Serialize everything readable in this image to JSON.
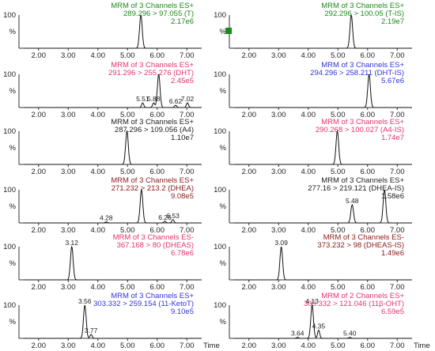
{
  "time_label": "Time",
  "chart_data": [
    {
      "type": "line",
      "col": 0,
      "row": 0,
      "color": "#1a8a1a",
      "header": [
        "MRM of 3 Channels ES+",
        "289.296 > 97.055 (T)",
        "2.17e6"
      ],
      "x_ticks": [
        "2.00",
        "3.00",
        "4.00",
        "5.00",
        "6.00",
        "7.00"
      ],
      "xlim": [
        1.5,
        7.5
      ],
      "y_ticks": [
        "100",
        "%"
      ],
      "ylim": [
        0,
        100
      ],
      "peaks": [
        {
          "x": 5.45,
          "y": 100
        }
      ],
      "peak_labels": []
    },
    {
      "type": "line",
      "col": 1,
      "row": 0,
      "color": "#1a8a1a",
      "header": [
        "MRM of 3 Channels ES+",
        "292.296 > 100.05 (T-IS)",
        "2.19e7"
      ],
      "x_ticks": [
        "2.00",
        "3.00",
        "4.00",
        "5.00",
        "6.00",
        "7.00"
      ],
      "xlim": [
        1.5,
        7.5
      ],
      "y_ticks": [
        "100",
        "%"
      ],
      "ylim": [
        0,
        100
      ],
      "peaks": [
        {
          "x": 5.45,
          "y": 100
        }
      ],
      "peak_labels": []
    },
    {
      "type": "line",
      "col": 0,
      "row": 1,
      "color": "#e8336c",
      "header": [
        "MRM of 3 Channels ES+",
        "291.296 > 255.276 (DHT)",
        "2.45e5"
      ],
      "x_ticks": [
        "2.00",
        "3.00",
        "4.00",
        "5.00",
        "6.00",
        "7.00"
      ],
      "xlim": [
        1.5,
        7.5
      ],
      "y_ticks": [
        "100",
        "%"
      ],
      "ylim": [
        0,
        100
      ],
      "peaks": [
        {
          "x": 5.51,
          "y": 14
        },
        {
          "x": 5.88,
          "y": 14
        },
        {
          "x": 6.05,
          "y": 100
        },
        {
          "x": 6.62,
          "y": 7
        },
        {
          "x": 7.02,
          "y": 14
        }
      ],
      "peak_labels": [
        {
          "x": 5.51,
          "text": "5.51"
        },
        {
          "x": 5.88,
          "text": "5.88"
        },
        {
          "x": 6.62,
          "text": "6.62"
        },
        {
          "x": 7.02,
          "text": "7.02"
        }
      ]
    },
    {
      "type": "line",
      "col": 1,
      "row": 1,
      "color": "#3333dd",
      "header": [
        "MRM of 3 Channels ES+",
        "294.296 > 258.211 (DHT-IS)",
        "5.67e6"
      ],
      "x_ticks": [
        "2.00",
        "3.00",
        "4.00",
        "5.00",
        "6.00",
        "7.00"
      ],
      "xlim": [
        1.5,
        7.5
      ],
      "y_ticks": [
        "100",
        "%"
      ],
      "ylim": [
        0,
        100
      ],
      "peaks": [
        {
          "x": 6.05,
          "y": 100
        }
      ],
      "peak_labels": []
    },
    {
      "type": "line",
      "col": 0,
      "row": 2,
      "color": "#222222",
      "header": [
        "MRM of 3 Channels ES+",
        "287.296 > 109.056 (A4)",
        "1.10e7"
      ],
      "x_ticks": [
        "2.00",
        "3.00",
        "4.00",
        "5.00",
        "6.00",
        "7.00"
      ],
      "xlim": [
        1.5,
        7.5
      ],
      "y_ticks": [
        "100",
        "%"
      ],
      "ylim": [
        0,
        100
      ],
      "peaks": [
        {
          "x": 4.98,
          "y": 100
        }
      ],
      "peak_labels": []
    },
    {
      "type": "line",
      "col": 1,
      "row": 2,
      "color": "#e8336c",
      "header": [
        "MRM of 3 Channels ES+",
        "290.268 > 100.027 (A4-IS)",
        "1.74e7"
      ],
      "x_ticks": [
        "2.00",
        "3.00",
        "4.00",
        "5.00",
        "6.00",
        "7.00"
      ],
      "xlim": [
        1.5,
        7.5
      ],
      "y_ticks": [
        "100",
        "%"
      ],
      "ylim": [
        0,
        100
      ],
      "peaks": [
        {
          "x": 4.98,
          "y": 100
        }
      ],
      "peak_labels": []
    },
    {
      "type": "line",
      "col": 0,
      "row": 3,
      "color": "#8b1a1a",
      "header": [
        "MRM of 3 Channels ES+",
        "271.232 > 213.2 (DHEA)",
        "9.08e5"
      ],
      "x_ticks": [
        "2.00",
        "3.00",
        "4.00",
        "5.00",
        "6.00",
        "7.00"
      ],
      "xlim": [
        1.5,
        7.5
      ],
      "y_ticks": [
        "100",
        "%"
      ],
      "ylim": [
        0,
        100
      ],
      "peaks": [
        {
          "x": 4.28,
          "y": 3
        },
        {
          "x": 5.47,
          "y": 100
        },
        {
          "x": 6.26,
          "y": 5
        },
        {
          "x": 6.53,
          "y": 10
        }
      ],
      "peak_labels": [
        {
          "x": 4.28,
          "text": "4.28"
        },
        {
          "x": 6.26,
          "text": "6.26"
        },
        {
          "x": 6.53,
          "text": "6.53"
        }
      ]
    },
    {
      "type": "line",
      "col": 1,
      "row": 3,
      "color": "#222222",
      "header": [
        "MRM of 3 Channels ES+",
        "277.16 > 219.121 (DHEA-IS)",
        "1.58e6"
      ],
      "x_ticks": [
        "2.00",
        "3.00",
        "4.00",
        "5.00",
        "6.00",
        "7.00"
      ],
      "xlim": [
        1.5,
        7.5
      ],
      "y_ticks": [
        "100",
        "%"
      ],
      "ylim": [
        0,
        100
      ],
      "peaks": [
        {
          "x": 5.48,
          "y": 55
        },
        {
          "x": 6.57,
          "y": 100
        }
      ],
      "peak_labels": [
        {
          "x": 5.48,
          "text": "5.48"
        }
      ]
    },
    {
      "type": "line",
      "col": 0,
      "row": 4,
      "color": "#e8336c",
      "header": [
        "MRM of 3 Channels ES-",
        "367.168 > 80 (DHEAS)",
        "6.78e6"
      ],
      "x_ticks": [
        "2.00",
        "3.00",
        "4.00",
        "5.00",
        "6.00",
        "7.00"
      ],
      "xlim": [
        1.5,
        7.5
      ],
      "y_ticks": [
        "100",
        "%"
      ],
      "ylim": [
        0,
        100
      ],
      "peaks": [
        {
          "x": 3.12,
          "y": 100
        }
      ],
      "peak_labels": [
        {
          "x": 3.12,
          "text": "3.12"
        }
      ]
    },
    {
      "type": "line",
      "col": 1,
      "row": 4,
      "color": "#8b1a1a",
      "header": [
        "MRM of 3 Channels ES-",
        "373.232 > 98 (DHEAS-IS)",
        "1.49e6"
      ],
      "x_ticks": [
        "2.00",
        "3.00",
        "4.00",
        "5.00",
        "6.00",
        "7.00"
      ],
      "xlim": [
        1.5,
        7.5
      ],
      "y_ticks": [
        "100",
        "%"
      ],
      "ylim": [
        0,
        100
      ],
      "peaks": [
        {
          "x": 3.09,
          "y": 100
        }
      ],
      "peak_labels": [
        {
          "x": 3.09,
          "text": "3.09"
        }
      ]
    },
    {
      "type": "line",
      "col": 0,
      "row": 5,
      "color": "#3333dd",
      "header": [
        "MRM of 3 Channels ES+",
        "303.332 > 259.154 (11-KetoT)",
        "9.10e5"
      ],
      "x_ticks": [
        "2.00",
        "3.00",
        "4.00",
        "5.00",
        "6.00",
        "7.00"
      ],
      "xlim": [
        1.5,
        7.5
      ],
      "y_ticks": [
        "100",
        "%"
      ],
      "ylim": [
        0,
        100
      ],
      "peaks": [
        {
          "x": 3.56,
          "y": 100
        },
        {
          "x": 3.77,
          "y": 12
        }
      ],
      "peak_labels": [
        {
          "x": 3.56,
          "text": "3.56"
        },
        {
          "x": 3.77,
          "text": "3.77"
        }
      ]
    },
    {
      "type": "line",
      "col": 1,
      "row": 5,
      "color": "#e8336c",
      "header": [
        "MRM of 2 Channels ES+",
        "305.332 > 121.046 (11β-OHT)",
        "6.59e5"
      ],
      "x_ticks": [
        "2.00",
        "3.00",
        "4.00",
        "5.00",
        "6.00",
        "7.00"
      ],
      "xlim": [
        1.5,
        7.5
      ],
      "y_ticks": [
        "100",
        "%"
      ],
      "ylim": [
        0,
        100
      ],
      "peaks": [
        {
          "x": 3.64,
          "y": 3
        },
        {
          "x": 4.13,
          "y": 100
        },
        {
          "x": 4.35,
          "y": 25
        },
        {
          "x": 5.4,
          "y": 3
        }
      ],
      "peak_labels": [
        {
          "x": 3.64,
          "text": "3.64"
        },
        {
          "x": 4.13,
          "text": "4.13"
        },
        {
          "x": 4.35,
          "text": "4.35"
        },
        {
          "x": 5.4,
          "text": "5.40"
        }
      ]
    }
  ]
}
